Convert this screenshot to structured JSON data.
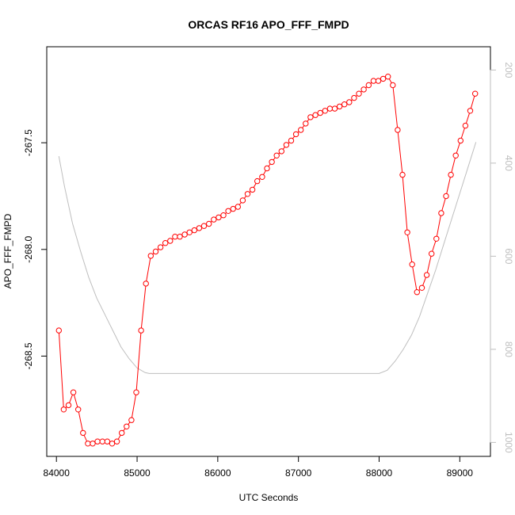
{
  "chart_data": {
    "type": "line",
    "title": "ORCAS RF16 APO_FFF_FMPD",
    "xlabel": "UTC Seconds",
    "ylabel": "APO_FFF_FMPD",
    "xlim": [
      83880,
      89380
    ],
    "ylim": [
      -268.97,
      -267.05
    ],
    "y2lim": [
      1030,
      150
    ],
    "xticks": [
      84000,
      85000,
      86000,
      87000,
      88000,
      89000
    ],
    "xtick_labels": [
      "84000",
      "85000",
      "86000",
      "87000",
      "88000",
      "89000"
    ],
    "yticks": [
      -268.5,
      -268.0,
      -267.5
    ],
    "ytick_labels": [
      "-268.5",
      "-268.0",
      "-267.5"
    ],
    "y2ticks": [
      200,
      400,
      600,
      800,
      1000
    ],
    "y2tick_labels": [
      "200",
      "400",
      "600",
      "800",
      "1000"
    ],
    "grid": false,
    "colors": {
      "main": "#ff0000",
      "secondary": "#bebebe",
      "axis": "#000000"
    },
    "series": [
      {
        "style": "line-points",
        "color": "#ff0000",
        "x": [
          84030,
          84090,
          84150,
          84210,
          84270,
          84330,
          84390,
          84450,
          84510,
          84570,
          84630,
          84690,
          84750,
          84810,
          84870,
          84930,
          84990,
          85050,
          85110,
          85170,
          85230,
          85290,
          85350,
          85410,
          85470,
          85530,
          85590,
          85650,
          85710,
          85770,
          85830,
          85890,
          85950,
          86010,
          86070,
          86130,
          86190,
          86250,
          86310,
          86370,
          86430,
          86490,
          86550,
          86610,
          86670,
          86730,
          86790,
          86850,
          86910,
          86970,
          87030,
          87090,
          87150,
          87210,
          87270,
          87330,
          87390,
          87450,
          87510,
          87570,
          87630,
          87690,
          87750,
          87810,
          87870,
          87930,
          87990,
          88050,
          88110,
          88170,
          88230,
          88290,
          88350,
          88410,
          88470,
          88530,
          88590,
          88650,
          88710,
          88770,
          88830,
          88890,
          88950,
          89010,
          89070,
          89130,
          89190
        ],
        "y": [
          -268.38,
          -268.75,
          -268.73,
          -268.67,
          -268.75,
          -268.86,
          -268.91,
          -268.91,
          -268.9,
          -268.9,
          -268.9,
          -268.91,
          -268.9,
          -268.86,
          -268.83,
          -268.8,
          -268.67,
          -268.38,
          -268.16,
          -268.03,
          -268.01,
          -267.99,
          -267.97,
          -267.96,
          -267.94,
          -267.94,
          -267.93,
          -267.92,
          -267.91,
          -267.9,
          -267.89,
          -267.88,
          -267.86,
          -267.85,
          -267.84,
          -267.82,
          -267.81,
          -267.8,
          -267.77,
          -267.74,
          -267.72,
          -267.68,
          -267.66,
          -267.62,
          -267.59,
          -267.56,
          -267.54,
          -267.51,
          -267.49,
          -267.46,
          -267.44,
          -267.41,
          -267.38,
          -267.37,
          -267.36,
          -267.35,
          -267.34,
          -267.34,
          -267.33,
          -267.32,
          -267.31,
          -267.29,
          -267.27,
          -267.25,
          -267.23,
          -267.21,
          -267.21,
          -267.2,
          -267.19,
          -267.23,
          -267.44,
          -267.65,
          -267.92,
          -268.07,
          -268.2,
          -268.18,
          -268.12,
          -268.02,
          -267.95,
          -267.83,
          -267.75,
          -267.65,
          -267.56,
          -267.49,
          -267.42,
          -267.35,
          -267.27
        ]
      },
      {
        "style": "line",
        "axis": "right",
        "color": "#bebebe",
        "x": [
          84030,
          84100,
          84200,
          84300,
          84400,
          84500,
          84600,
          84700,
          84800,
          84900,
          85000,
          85100,
          85150,
          85200,
          85500,
          86000,
          86500,
          87000,
          87500,
          87800,
          88000,
          88100,
          88200,
          88300,
          88400,
          88500,
          88600,
          88700,
          88800,
          88900,
          89000,
          89100,
          89200
        ],
        "y": [
          385,
          450,
          530,
          590,
          645,
          690,
          725,
          760,
          795,
          820,
          840,
          850,
          852,
          852,
          852,
          852,
          852,
          852,
          852,
          852,
          852,
          845,
          825,
          800,
          770,
          730,
          680,
          630,
          575,
          520,
          465,
          410,
          355
        ]
      }
    ]
  }
}
